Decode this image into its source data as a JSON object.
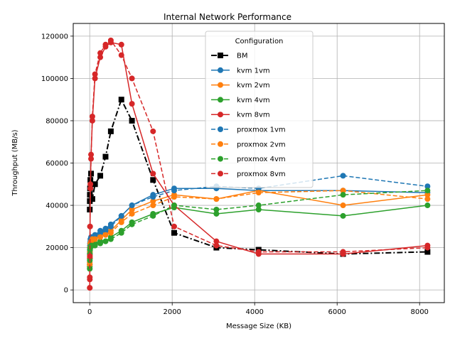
{
  "chart_data": {
    "type": "line",
    "title": "Internal Network Performance",
    "xlabel": "Message Size (KB)",
    "ylabel": "Throughput (MB/s)",
    "xlim": [
      -400,
      8600
    ],
    "ylim": [
      -6000,
      126000
    ],
    "xticks": [
      0,
      2000,
      4000,
      6000,
      8000
    ],
    "xtick_labels": [
      "0",
      "2000",
      "4000",
      "6000",
      "8000"
    ],
    "yticks": [
      0,
      20000,
      40000,
      60000,
      80000,
      100000,
      120000
    ],
    "ytick_labels": [
      "0",
      "20000",
      "40000",
      "60000",
      "80000",
      "100000",
      "120000"
    ],
    "grid": true,
    "legend": {
      "title": "Configuration",
      "placement": "upper center"
    },
    "x": [
      1,
      2,
      4,
      8,
      16,
      32,
      64,
      128,
      256,
      384,
      512,
      768,
      1024,
      1536,
      2048,
      3072,
      4096,
      6144,
      8192
    ],
    "series": [
      {
        "name": "BM",
        "color": "#000000",
        "style": "dashdot",
        "marker": "square",
        "values": [
          38000,
          42000,
          45000,
          48000,
          52000,
          55000,
          43000,
          50000,
          54000,
          63000,
          75000,
          90000,
          80000,
          52000,
          27000,
          20000,
          19000,
          17000,
          18000
        ]
      },
      {
        "name": "kvm 1vm",
        "color": "#1f77b4",
        "style": "solid",
        "marker": "circle",
        "values": [
          12000,
          18000,
          20000,
          22000,
          24000,
          25000,
          25000,
          26000,
          28000,
          29000,
          31000,
          35000,
          40000,
          45000,
          48000,
          48000,
          47000,
          47000,
          46000
        ]
      },
      {
        "name": "kvm 2vm",
        "color": "#ff7f0e",
        "style": "solid",
        "marker": "circle",
        "values": [
          13000,
          17000,
          19000,
          21000,
          22000,
          23000,
          24000,
          25000,
          26000,
          27000,
          28000,
          33000,
          38000,
          42000,
          45000,
          43000,
          47000,
          40000,
          45000
        ]
      },
      {
        "name": "kvm 4vm",
        "color": "#2ca02c",
        "style": "solid",
        "marker": "circle",
        "values": [
          11000,
          15000,
          18000,
          20000,
          21000,
          22000,
          22000,
          22000,
          23000,
          23000,
          25000,
          28000,
          32000,
          36000,
          39000,
          36000,
          38000,
          35000,
          40000
        ]
      },
      {
        "name": "kvm 8vm",
        "color": "#d62728",
        "style": "solid",
        "marker": "circle",
        "values": [
          1000,
          5000,
          15000,
          30000,
          50000,
          64000,
          80000,
          100000,
          110000,
          115000,
          117000,
          116000,
          88000,
          55000,
          40000,
          23000,
          17000,
          17000,
          21000
        ]
      },
      {
        "name": "proxmox 1vm",
        "color": "#1f77b4",
        "style": "dashed",
        "marker": "circle",
        "values": [
          12000,
          17000,
          19000,
          21000,
          23000,
          24000,
          25000,
          26000,
          27000,
          28000,
          30000,
          35000,
          40000,
          44000,
          47000,
          49000,
          48000,
          54000,
          49000
        ]
      },
      {
        "name": "proxmox 2vm",
        "color": "#ff7f0e",
        "style": "dashed",
        "marker": "circle",
        "values": [
          12000,
          16000,
          18000,
          20000,
          22000,
          23000,
          24000,
          24000,
          25000,
          26000,
          27000,
          32000,
          36000,
          40000,
          44000,
          43000,
          46000,
          47000,
          43000
        ]
      },
      {
        "name": "proxmox 4vm",
        "color": "#2ca02c",
        "style": "dashed",
        "marker": "circle",
        "values": [
          10000,
          14000,
          17000,
          19000,
          20000,
          21000,
          21000,
          21000,
          22000,
          23000,
          24000,
          27000,
          31000,
          35000,
          40000,
          38000,
          40000,
          45000,
          47000
        ]
      },
      {
        "name": "proxmox 8vm",
        "color": "#d62728",
        "style": "dashed",
        "marker": "circle",
        "values": [
          1000,
          6000,
          16000,
          30000,
          48000,
          62000,
          82000,
          102000,
          112000,
          116000,
          118000,
          111000,
          100000,
          75000,
          30000,
          21000,
          18000,
          18000,
          20000
        ]
      }
    ]
  }
}
